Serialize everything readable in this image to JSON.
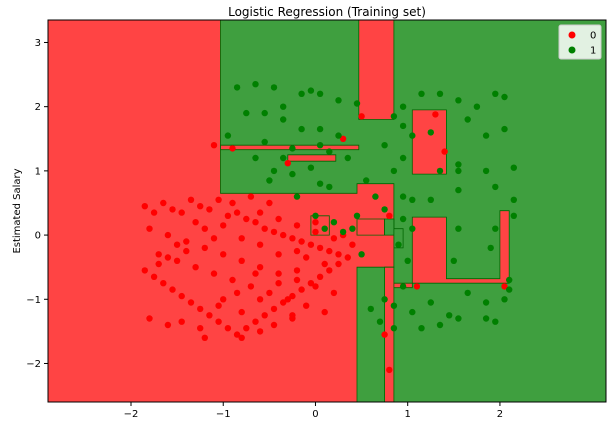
{
  "chart_data": {
    "type": "scatter",
    "title": "Logistic Regression (Training set)",
    "xlabel": "",
    "ylabel": "Estimated Salary",
    "xlim": [
      -2.9,
      3.15
    ],
    "ylim": [
      -2.6,
      3.35
    ],
    "xticks": [
      -2,
      -1,
      0,
      1,
      2
    ],
    "yticks": [
      -2,
      -1,
      0,
      1,
      2,
      3
    ],
    "legend_position": "top-right",
    "colors": {
      "class0": "#ff0000",
      "class1": "#008000",
      "region0": "#ff4444",
      "region1": "#3f9f3f",
      "boundary": "#006600"
    },
    "decision_regions": [
      {
        "class": "1",
        "polygon": [
          [
            -1.03,
            3.35
          ],
          [
            3.15,
            3.35
          ],
          [
            3.15,
            -2.6
          ],
          [
            0.45,
            -2.6
          ],
          [
            0.45,
            -0.5
          ],
          [
            0.85,
            -0.5
          ],
          [
            0.85,
            0.8
          ],
          [
            0.45,
            0.8
          ],
          [
            0.45,
            0.65
          ],
          [
            -1.03,
            0.65
          ]
        ]
      },
      {
        "class": "0",
        "polygon": [
          [
            0.47,
            3.35
          ],
          [
            0.85,
            3.35
          ],
          [
            0.85,
            1.8
          ],
          [
            0.47,
            1.8
          ]
        ]
      },
      {
        "class": "0",
        "polygon": [
          [
            1.05,
            1.95
          ],
          [
            1.42,
            1.95
          ],
          [
            1.42,
            0.95
          ],
          [
            1.05,
            0.95
          ]
        ]
      },
      {
        "class": "0",
        "polygon": [
          [
            -1.03,
            1.4
          ],
          [
            0.47,
            1.4
          ],
          [
            0.47,
            1.33
          ],
          [
            -1.03,
            1.33
          ]
        ]
      },
      {
        "class": "0",
        "polygon": [
          [
            -0.3,
            1.25
          ],
          [
            0.22,
            1.25
          ],
          [
            0.22,
            1.15
          ],
          [
            -0.3,
            1.15
          ]
        ]
      },
      {
        "class": "0",
        "polygon": [
          [
            0.75,
            -0.5
          ],
          [
            0.85,
            -0.5
          ],
          [
            0.85,
            -2.6
          ],
          [
            0.75,
            -2.6
          ]
        ]
      },
      {
        "class": "0",
        "polygon": [
          [
            0.85,
            -0.75
          ],
          [
            2.1,
            -0.75
          ],
          [
            2.1,
            0.38
          ],
          [
            2.0,
            0.38
          ],
          [
            2.0,
            -0.68
          ],
          [
            1.42,
            -0.68
          ],
          [
            1.42,
            0.28
          ],
          [
            1.05,
            0.28
          ],
          [
            1.05,
            -0.82
          ],
          [
            0.85,
            -0.82
          ]
        ]
      },
      {
        "class": "0",
        "polygon": [
          [
            0.45,
            0.25
          ],
          [
            0.75,
            0.25
          ],
          [
            0.75,
            0.0
          ],
          [
            0.45,
            0.0
          ]
        ]
      },
      {
        "class": "0",
        "polygon": [
          [
            -0.05,
            0.3
          ],
          [
            0.15,
            0.3
          ],
          [
            0.15,
            0.0
          ],
          [
            -0.05,
            0.0
          ]
        ]
      },
      {
        "class": "1",
        "polygon": [
          [
            0.75,
            0.25
          ],
          [
            0.85,
            0.25
          ],
          [
            0.85,
            0.0
          ],
          [
            0.75,
            0.0
          ]
        ]
      },
      {
        "class": "1",
        "polygon": [
          [
            0.85,
            0.1
          ],
          [
            0.95,
            0.1
          ],
          [
            0.95,
            -0.2
          ],
          [
            0.85,
            -0.2
          ]
        ]
      }
    ],
    "series": [
      {
        "name": "0",
        "points": [
          [
            -1.85,
            0.45
          ],
          [
            -1.75,
            0.35
          ],
          [
            -1.65,
            0.5
          ],
          [
            -1.55,
            0.4
          ],
          [
            -1.45,
            0.35
          ],
          [
            -1.35,
            0.55
          ],
          [
            -1.25,
            0.45
          ],
          [
            -1.15,
            0.4
          ],
          [
            -1.05,
            0.55
          ],
          [
            -0.95,
            0.3
          ],
          [
            -0.85,
            0.35
          ],
          [
            -0.75,
            0.25
          ],
          [
            -0.65,
            0.2
          ],
          [
            -0.55,
            0.1
          ],
          [
            -0.45,
            0.05
          ],
          [
            -0.35,
            0.0
          ],
          [
            -0.25,
            -0.05
          ],
          [
            -0.15,
            -0.1
          ],
          [
            -0.05,
            -0.15
          ],
          [
            0.05,
            -0.2
          ],
          [
            0.15,
            -0.25
          ],
          [
            0.25,
            -0.3
          ],
          [
            0.35,
            -0.35
          ],
          [
            -1.85,
            -0.55
          ],
          [
            -1.75,
            -0.65
          ],
          [
            -1.65,
            -0.75
          ],
          [
            -1.55,
            -0.85
          ],
          [
            -1.45,
            -0.95
          ],
          [
            -1.35,
            -1.05
          ],
          [
            -1.25,
            -1.15
          ],
          [
            -1.15,
            -1.25
          ],
          [
            -1.05,
            -1.35
          ],
          [
            -0.95,
            -1.45
          ],
          [
            -0.85,
            -1.55
          ],
          [
            -0.75,
            -1.45
          ],
          [
            -0.65,
            -1.35
          ],
          [
            -0.55,
            -1.25
          ],
          [
            -0.45,
            -1.15
          ],
          [
            -0.35,
            -1.05
          ],
          [
            -0.25,
            -0.95
          ],
          [
            -0.15,
            -0.85
          ],
          [
            -0.05,
            -0.75
          ],
          [
            0.05,
            -0.65
          ],
          [
            0.15,
            -0.55
          ],
          [
            0.25,
            -0.45
          ],
          [
            -1.8,
            0.1
          ],
          [
            -1.6,
            0.0
          ],
          [
            -1.4,
            -0.1
          ],
          [
            -1.2,
            -0.2
          ],
          [
            -1.0,
            -0.3
          ],
          [
            -0.8,
            -0.4
          ],
          [
            -0.6,
            -0.5
          ],
          [
            -0.4,
            -0.6
          ],
          [
            -0.2,
            -0.7
          ],
          [
            0.0,
            -0.8
          ],
          [
            0.2,
            -0.9
          ],
          [
            -1.7,
            -0.3
          ],
          [
            -1.5,
            -0.4
          ],
          [
            -1.3,
            -0.5
          ],
          [
            -1.1,
            -0.6
          ],
          [
            -0.9,
            -0.7
          ],
          [
            -0.7,
            -0.8
          ],
          [
            -0.5,
            -0.9
          ],
          [
            -0.3,
            -1.0
          ],
          [
            -0.1,
            -1.1
          ],
          [
            0.1,
            -1.2
          ],
          [
            -0.6,
            0.35
          ],
          [
            -0.4,
            0.25
          ],
          [
            -0.2,
            0.15
          ],
          [
            0.0,
            0.05
          ],
          [
            0.2,
            -0.05
          ],
          [
            0.4,
            -0.15
          ],
          [
            -0.9,
            1.35
          ],
          [
            -1.1,
            1.4
          ],
          [
            -0.3,
            1.12
          ],
          [
            0.3,
            1.5
          ],
          [
            0.5,
            1.85
          ],
          [
            1.3,
            1.88
          ],
          [
            1.4,
            1.3
          ],
          [
            0.8,
            0.3
          ],
          [
            1.1,
            -0.8
          ],
          [
            2.05,
            -0.8
          ],
          [
            0.75,
            -1.55
          ],
          [
            0.8,
            -2.1
          ],
          [
            0.0,
            0.2
          ],
          [
            0.3,
            0.0
          ],
          [
            -0.5,
            0.5
          ],
          [
            -0.7,
            0.6
          ],
          [
            -0.9,
            0.5
          ],
          [
            -1.0,
            0.15
          ],
          [
            -1.1,
            -0.05
          ],
          [
            -1.2,
            0.1
          ],
          [
            -1.3,
            0.2
          ],
          [
            -1.4,
            -0.25
          ],
          [
            -1.5,
            -0.15
          ],
          [
            -1.6,
            -0.35
          ],
          [
            -1.7,
            -0.45
          ],
          [
            -0.2,
            -0.25
          ],
          [
            -0.1,
            -0.35
          ],
          [
            0.1,
            -0.45
          ],
          [
            -0.4,
            -0.3
          ],
          [
            -0.6,
            -0.15
          ],
          [
            -0.8,
            -0.05
          ],
          [
            -1.0,
            -1.0
          ],
          [
            -0.8,
            -1.2
          ],
          [
            -0.6,
            -1.0
          ],
          [
            -0.4,
            -0.75
          ],
          [
            -0.2,
            -0.55
          ],
          [
            -1.45,
            -1.35
          ],
          [
            -1.25,
            -1.45
          ],
          [
            -1.05,
            -1.1
          ],
          [
            -0.85,
            -0.9
          ],
          [
            -0.65,
            -0.6
          ],
          [
            -0.45,
            -1.4
          ],
          [
            -0.25,
            -1.25
          ],
          [
            -0.25,
            -1.3
          ],
          [
            -1.8,
            -1.3
          ],
          [
            -1.6,
            -1.4
          ],
          [
            -1.2,
            -1.6
          ],
          [
            -0.8,
            -1.6
          ],
          [
            -0.6,
            -1.5
          ]
        ]
      },
      {
        "name": "1",
        "points": [
          [
            -0.85,
            2.3
          ],
          [
            -0.65,
            2.35
          ],
          [
            -0.45,
            2.3
          ],
          [
            -0.35,
            2.0
          ],
          [
            -0.15,
            2.2
          ],
          [
            -0.05,
            2.25
          ],
          [
            0.05,
            2.2
          ],
          [
            0.25,
            2.1
          ],
          [
            0.45,
            2.05
          ],
          [
            0.95,
            2.0
          ],
          [
            1.15,
            2.2
          ],
          [
            1.35,
            2.2
          ],
          [
            1.55,
            2.1
          ],
          [
            1.75,
            2.0
          ],
          [
            1.95,
            2.2
          ],
          [
            2.05,
            2.15
          ],
          [
            -0.75,
            1.9
          ],
          [
            -0.55,
            1.9
          ],
          [
            -0.35,
            1.8
          ],
          [
            -0.15,
            1.65
          ],
          [
            0.05,
            1.65
          ],
          [
            0.25,
            1.55
          ],
          [
            0.85,
            1.85
          ],
          [
            0.95,
            1.7
          ],
          [
            1.05,
            1.55
          ],
          [
            1.25,
            1.6
          ],
          [
            1.65,
            1.8
          ],
          [
            1.85,
            1.55
          ],
          [
            2.05,
            1.65
          ],
          [
            -0.95,
            1.55
          ],
          [
            -0.55,
            1.45
          ],
          [
            -0.25,
            1.35
          ],
          [
            0.05,
            1.4
          ],
          [
            0.15,
            1.3
          ],
          [
            0.35,
            1.2
          ],
          [
            0.75,
            1.4
          ],
          [
            0.95,
            1.2
          ],
          [
            1.35,
            1.0
          ],
          [
            1.55,
            1.1
          ],
          [
            1.85,
            1.0
          ],
          [
            2.15,
            1.05
          ],
          [
            -0.65,
            1.2
          ],
          [
            -0.45,
            1.0
          ],
          [
            -0.25,
            0.95
          ],
          [
            0.15,
            0.75
          ],
          [
            0.55,
            0.85
          ],
          [
            0.95,
            0.6
          ],
          [
            1.05,
            0.55
          ],
          [
            1.25,
            0.55
          ],
          [
            1.55,
            0.7
          ],
          [
            1.95,
            0.75
          ],
          [
            2.15,
            0.55
          ],
          [
            -0.5,
            0.85
          ],
          [
            -0.2,
            0.6
          ],
          [
            0.0,
            0.3
          ],
          [
            0.2,
            0.2
          ],
          [
            0.4,
            0.1
          ],
          [
            0.95,
            0.25
          ],
          [
            1.05,
            0.1
          ],
          [
            1.55,
            0.1
          ],
          [
            1.95,
            0.1
          ],
          [
            2.15,
            0.3
          ],
          [
            0.1,
            0.1
          ],
          [
            0.3,
            0.05
          ],
          [
            0.5,
            -0.3
          ],
          [
            0.9,
            -0.15
          ],
          [
            1.0,
            -0.4
          ],
          [
            1.5,
            -0.4
          ],
          [
            1.9,
            -0.2
          ],
          [
            2.1,
            -0.7
          ],
          [
            0.75,
            -1.0
          ],
          [
            0.85,
            -1.1
          ],
          [
            1.05,
            -1.2
          ],
          [
            1.25,
            -1.05
          ],
          [
            1.45,
            -1.25
          ],
          [
            1.65,
            -0.9
          ],
          [
            1.85,
            -1.05
          ],
          [
            1.95,
            -1.35
          ],
          [
            2.1,
            -0.85
          ],
          [
            0.6,
            -1.15
          ],
          [
            0.7,
            -1.35
          ],
          [
            0.85,
            -1.45
          ],
          [
            1.15,
            -1.45
          ],
          [
            1.35,
            -1.4
          ],
          [
            1.55,
            -1.3
          ],
          [
            1.85,
            -1.3
          ],
          [
            2.05,
            -1.0
          ],
          [
            0.95,
            -0.8
          ],
          [
            0.65,
            0.6
          ],
          [
            0.75,
            0.4
          ],
          [
            0.45,
            0.3
          ],
          [
            0.05,
            0.8
          ],
          [
            -0.05,
            1.05
          ],
          [
            -0.35,
            1.2
          ],
          [
            0.85,
            1.0
          ],
          [
            1.55,
            1.0
          ]
        ]
      }
    ]
  }
}
